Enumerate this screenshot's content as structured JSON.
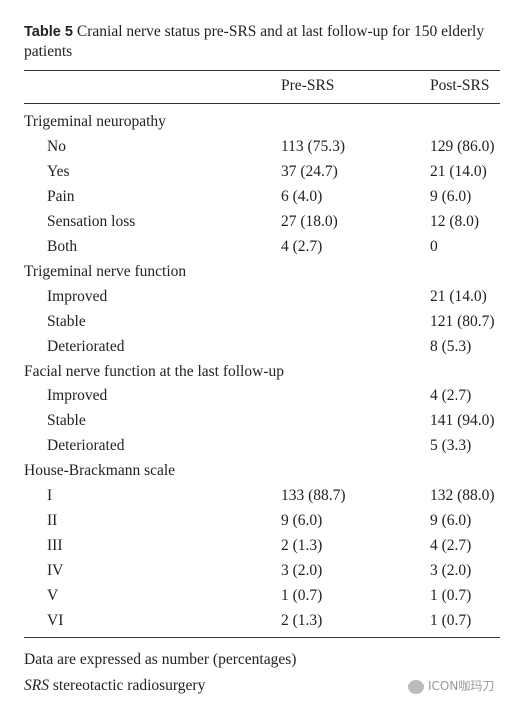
{
  "caption": {
    "label": "Table 5",
    "text": "Cranial nerve status pre-SRS and at last follow-up for 150 elderly patients"
  },
  "table": {
    "header": [
      "Pre-SRS",
      "Post-SRS"
    ],
    "sections": [
      {
        "title": "Trigeminal neuropathy",
        "rows": [
          [
            "No",
            "113 (75.3)",
            "129 (86.0)"
          ],
          [
            "Yes",
            "37 (24.7)",
            "21 (14.0)"
          ],
          [
            "Pain",
            "6 (4.0)",
            "9 (6.0)"
          ],
          [
            "Sensation loss",
            "27 (18.0)",
            "12 (8.0)"
          ],
          [
            "Both",
            "4 (2.7)",
            "0"
          ]
        ]
      },
      {
        "title": "Trigeminal nerve function",
        "rows": [
          [
            "Improved",
            null,
            "21 (14.0)"
          ],
          [
            "Stable",
            null,
            "121 (80.7)"
          ],
          [
            "Deteriorated",
            null,
            "8 (5.3)"
          ]
        ]
      },
      {
        "title": "Facial nerve function at the last follow-up",
        "rows": [
          [
            "Improved",
            null,
            "4 (2.7)"
          ],
          [
            "Stable",
            null,
            "141 (94.0)"
          ],
          [
            "Deteriorated",
            null,
            "5 (3.3)"
          ]
        ]
      },
      {
        "title": "House-Brackmann scale",
        "rows": [
          [
            "I",
            "133 (88.7)",
            "132 (88.0)"
          ],
          [
            "II",
            "9 (6.0)",
            "9 (6.0)"
          ],
          [
            "III",
            "2 (1.3)",
            "4 (2.7)"
          ],
          [
            "IV",
            "3 (2.0)",
            "3 (2.0)"
          ],
          [
            "V",
            "1 (0.7)",
            "1 (0.7)"
          ],
          [
            "VI",
            "2 (1.3)",
            "1 (0.7)"
          ]
        ]
      }
    ]
  },
  "footnotes": {
    "note": "Data are expressed as number (percentages)",
    "abbreviation": {
      "term": "SRS",
      "definition": "stereotactic radiosurgery"
    }
  },
  "watermark": "ICON咖玛刀"
}
